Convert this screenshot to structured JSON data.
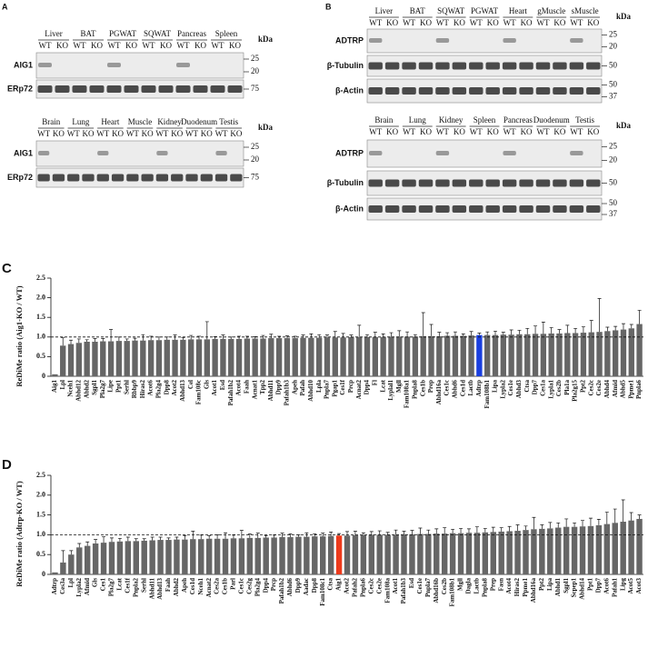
{
  "blots": {
    "lane_labels": [
      "WT",
      "KO"
    ],
    "unit": "kDa",
    "panel_a": {
      "label": "A",
      "groups": [
        {
          "tissues": [
            "Liver",
            "BAT",
            "PGWAT",
            "SQWAT",
            "Pancreas",
            "Spleen"
          ],
          "rows": [
            {
              "name": "AIG1",
              "markers": [
                "25",
                "20"
              ]
            },
            {
              "name": "ERp72",
              "markers": [
                "75"
              ]
            }
          ]
        },
        {
          "tissues": [
            "Brain",
            "Lung",
            "Heart",
            "Muscle",
            "Kidney",
            "Duodenum",
            "Testis"
          ],
          "rows": [
            {
              "name": "AIG1",
              "markers": [
                "25",
                "20"
              ]
            },
            {
              "name": "ERp72",
              "markers": [
                "75"
              ]
            }
          ]
        }
      ]
    },
    "panel_b": {
      "label": "B",
      "groups": [
        {
          "tissues": [
            "Liver",
            "BAT",
            "SQWAT",
            "PGWAT",
            "Heart",
            "gMuscle",
            "sMuscle"
          ],
          "rows": [
            {
              "name": "ADTRP",
              "markers": [
                "25",
                "20"
              ]
            },
            {
              "name": "β-Tubulin",
              "markers": [
                "50"
              ]
            },
            {
              "name": "β-Actin",
              "markers": [
                "50",
                "37"
              ]
            }
          ]
        },
        {
          "tissues": [
            "Brain",
            "Lung",
            "Kidney",
            "Spleen",
            "Pancreas",
            "Duodenum",
            "Testis"
          ],
          "rows": [
            {
              "name": "ADTRP",
              "markers": [
                "25",
                "20"
              ]
            },
            {
              "name": "β-Tubulin",
              "markers": [
                "50"
              ]
            },
            {
              "name": "β-Actin",
              "markers": [
                "50",
                "37"
              ]
            }
          ]
        }
      ]
    }
  },
  "chart_data": [
    {
      "type": "bar",
      "panel": "C",
      "y_label": "ReDiMe ratio (Aig1-KO / WT)",
      "color": "#666666",
      "categories": [
        "Aig1",
        "Lpl",
        "Nceh1",
        "Abhd12",
        "Abhd2",
        "Sgpl1",
        "Pla2g7",
        "Lipe",
        "Ppt1",
        "Serhl",
        "Rbbp9",
        "Hiras2",
        "Acot6",
        "Pla2g4",
        "Dpp8",
        "Acot2",
        "Abhd13",
        "Cel",
        "Fam108c",
        "Gls",
        "Acot1",
        "Esd",
        "Pafah1b2",
        "Acot4",
        "Faah",
        "Acnat1",
        "Tpp2",
        "Abhd11",
        "Dpp9",
        "Pafah1b3",
        "Apeh",
        "Pafah",
        "Abhd10",
        "Lpla",
        "Pnpla7",
        "Pgap1",
        "Ces1f",
        "Prcp",
        "Acnat2",
        "Dpp4",
        "Fl",
        "Lcat",
        "Lyplal1",
        "Mgll",
        "Fam108a1",
        "Pnpla8",
        "Ces1b",
        "Prep",
        "Abhd16a",
        "Ces1c",
        "Abhd6",
        "Ces1d",
        "Lactb",
        "Adtrp",
        "Fam108b1",
        "Lipa",
        "Lypla2",
        "Ces1e",
        "Abhd3",
        "Ctsa",
        "Dpp7",
        "Ces1a",
        "Lypla1",
        "Ces2b",
        "Pla1a",
        "Pla2g15",
        "Ppt2",
        "Ces2c",
        "Ces2e",
        "Abhd4",
        "Afmid",
        "Abhd5",
        "Ppme1",
        "Pnpla6"
      ],
      "values": [
        0.05,
        0.78,
        0.82,
        0.85,
        0.88,
        0.88,
        0.89,
        0.89,
        0.9,
        0.9,
        0.91,
        0.91,
        0.92,
        0.92,
        0.93,
        0.93,
        0.93,
        0.94,
        0.94,
        0.94,
        0.95,
        0.95,
        0.95,
        0.95,
        0.96,
        0.96,
        0.96,
        0.97,
        0.97,
        0.97,
        0.97,
        0.98,
        0.98,
        0.98,
        0.99,
        0.99,
        0.99,
        1.0,
        1.0,
        1.0,
        1.0,
        1.0,
        1.01,
        1.01,
        1.01,
        1.01,
        1.02,
        1.02,
        1.02,
        1.03,
        1.03,
        1.03,
        1.04,
        1.05,
        1.05,
        1.05,
        1.06,
        1.06,
        1.07,
        1.07,
        1.08,
        1.08,
        1.09,
        1.09,
        1.1,
        1.1,
        1.11,
        1.12,
        1.13,
        1.15,
        1.17,
        1.19,
        1.22,
        1.33
      ],
      "errors": [
        0,
        0.2,
        0.1,
        0.1,
        0.05,
        0.08,
        0.07,
        0.3,
        0.1,
        0.05,
        0.06,
        0.15,
        0.1,
        0.08,
        0.07,
        0.12,
        0.05,
        0.1,
        0.08,
        0.45,
        0.06,
        0.1,
        0.05,
        0.07,
        0.06,
        0.05,
        0.08,
        0.1,
        0.05,
        0.06,
        0.05,
        0.07,
        0.1,
        0.08,
        0.06,
        0.15,
        0.1,
        0.05,
        0.3,
        0.06,
        0.12,
        0.08,
        0.1,
        0.15,
        0.12,
        0.05,
        0.6,
        0.3,
        0.1,
        0.08,
        0.1,
        0.05,
        0.1,
        0.05,
        0.08,
        0.1,
        0.06,
        0.12,
        0.1,
        0.15,
        0.2,
        0.3,
        0.15,
        0.1,
        0.2,
        0.12,
        0.15,
        0.3,
        0.85,
        0.1,
        0.1,
        0.15,
        0.1,
        0.35
      ],
      "highlight_bar": {
        "category": "Adtrp",
        "color": "#1a3fe0"
      },
      "highlight_label": {
        "category": "Aig1",
        "color": "#d9442b"
      },
      "ylim": [
        0,
        2.5
      ],
      "yticks": [
        0,
        0.5,
        {
          "value": 1,
          "label": "1.0"
        },
        1.5,
        {
          "value": 2,
          "label": "2.0"
        },
        2.5
      ],
      "reference_line": 1
    },
    {
      "type": "bar",
      "panel": "D",
      "y_label": "ReDiMe ratio (Adtrp-KO / WT)",
      "color": "#666666",
      "categories": [
        "Adtrp",
        "Ces3a",
        "Lpl",
        "Lypla2",
        "Afmid",
        "Gls",
        "Ces1",
        "Pla2g7",
        "Lcat",
        "Ces1f",
        "Pnpla2",
        "Serhl",
        "Abhd11",
        "Abhd13",
        "Faah",
        "Abhd2",
        "Apeh",
        "Ces1d",
        "Nceh1",
        "Acnat2",
        "Ces2a",
        "Ces1b",
        "Parl",
        "Ces1c",
        "Ces2g",
        "Pla2g4",
        "Dpp4",
        "Prcp",
        "Pafah1b2",
        "Abhd6",
        "Dpp9",
        "Aadac",
        "Dpp8",
        "Fam108c1",
        "Ctsa",
        "Aig1",
        "Acot2",
        "Pafah2",
        "Pnpla6",
        "Ces2c",
        "Ces2e",
        "Fam108a",
        "Acot1",
        "Pafah1b3",
        "Esd",
        "Ces1e",
        "Pnpla7",
        "Abhd16b",
        "Ces2b",
        "Fam108b1",
        "Mgll",
        "Dagla",
        "Lactb",
        "Pnpla8",
        "Prep",
        "Fasn",
        "Acot4",
        "Hiras2",
        "Ppme1",
        "Abhd16a",
        "Ppt2",
        "Lipa",
        "Abhd1",
        "Sgpl1",
        "Scpep1",
        "Abhd14",
        "Ppt1",
        "Dpp7",
        "Acot6",
        "Pafah1",
        "Lipg",
        "Acot5",
        "Acot3"
      ],
      "values": [
        0.05,
        0.3,
        0.5,
        0.68,
        0.72,
        0.78,
        0.8,
        0.82,
        0.83,
        0.84,
        0.84,
        0.85,
        0.86,
        0.87,
        0.87,
        0.88,
        0.88,
        0.89,
        0.89,
        0.9,
        0.9,
        0.9,
        0.91,
        0.91,
        0.92,
        0.92,
        0.93,
        0.93,
        0.94,
        0.94,
        0.95,
        0.95,
        0.96,
        0.96,
        0.97,
        0.98,
        0.98,
        0.99,
        0.99,
        1.0,
        1.0,
        1.0,
        1.0,
        1.01,
        1.01,
        1.02,
        1.02,
        1.03,
        1.03,
        1.04,
        1.04,
        1.05,
        1.05,
        1.06,
        1.07,
        1.08,
        1.09,
        1.1,
        1.12,
        1.14,
        1.15,
        1.16,
        1.18,
        1.2,
        1.2,
        1.21,
        1.22,
        1.24,
        1.27,
        1.3,
        1.33,
        1.36,
        1.4
      ],
      "errors": [
        0,
        0.3,
        0.1,
        0.1,
        0.1,
        0.1,
        0.15,
        0.1,
        0.08,
        0.1,
        0.06,
        0.05,
        0.08,
        0.07,
        0.05,
        0.06,
        0.1,
        0.2,
        0.1,
        0.08,
        0.1,
        0.15,
        0.08,
        0.2,
        0.1,
        0.12,
        0.05,
        0.06,
        0.1,
        0.08,
        0.05,
        0.1,
        0.06,
        0.08,
        0.1,
        0.05,
        0.1,
        0.1,
        0.06,
        0.08,
        0.1,
        0.06,
        0.12,
        0.08,
        0.1,
        0.15,
        0.1,
        0.12,
        0.15,
        0.1,
        0.12,
        0.1,
        0.15,
        0.1,
        0.12,
        0.1,
        0.12,
        0.15,
        0.1,
        0.3,
        0.1,
        0.15,
        0.12,
        0.2,
        0.1,
        0.15,
        0.2,
        0.15,
        0.3,
        0.35,
        0.55,
        0.2,
        0.1
      ],
      "highlight_bar": {
        "category": "Aig1",
        "color": "#ee3a1c"
      },
      "highlight_label": {
        "category": "Adtrp",
        "color": "#1a3fe0"
      },
      "ylim": [
        0,
        2.5
      ],
      "yticks": [
        0,
        0.5,
        {
          "value": 1,
          "label": "1.0"
        },
        1.5,
        {
          "value": 2,
          "label": "2.0"
        },
        2.5
      ],
      "reference_line": 1
    }
  ]
}
